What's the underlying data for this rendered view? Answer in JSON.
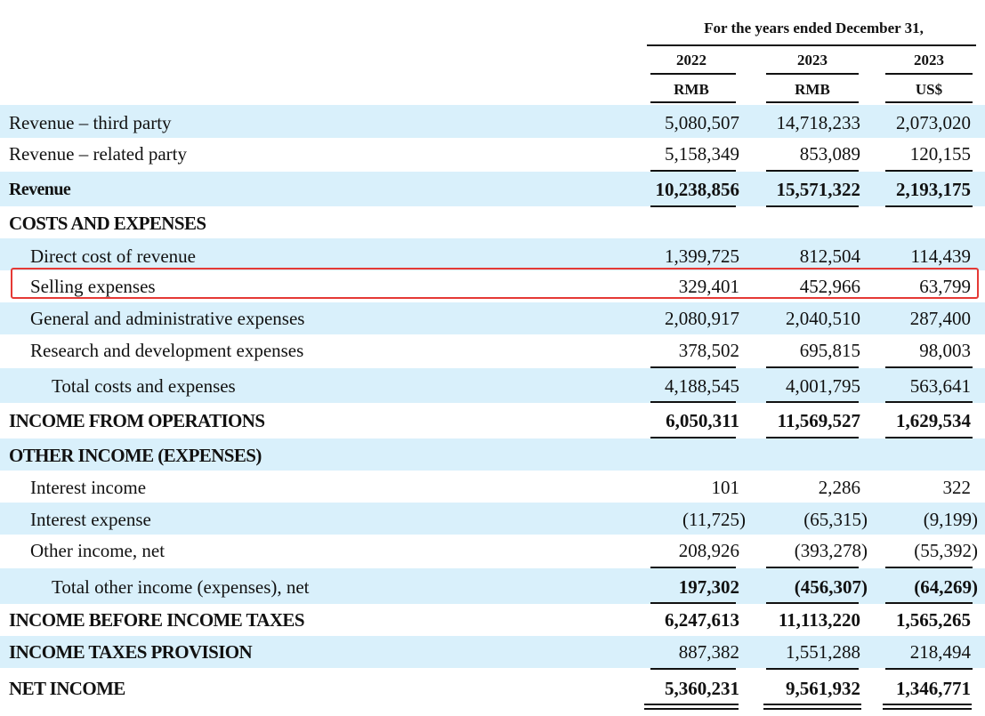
{
  "header": {
    "title": "For the years ended December 31,",
    "columns": [
      {
        "year": "2022",
        "currency": "RMB"
      },
      {
        "year": "2023",
        "currency": "RMB"
      },
      {
        "year": "2023",
        "currency": "US$"
      }
    ]
  },
  "rows": [
    {
      "label": "Revenue – third party",
      "values": [
        "5,080,507",
        "14,718,233",
        "2,073,020"
      ]
    },
    {
      "label": "Revenue – related party",
      "values": [
        "5,158,349",
        "853,089",
        "120,155"
      ]
    },
    {
      "label": "Revenue",
      "values": [
        "10,238,856",
        "15,571,322",
        "2,193,175"
      ]
    },
    {
      "label": "COSTS AND EXPENSES",
      "values": [
        "",
        "",
        ""
      ]
    },
    {
      "label": "Direct cost of revenue",
      "values": [
        "1,399,725",
        "812,504",
        "114,439"
      ]
    },
    {
      "label": "Selling expenses",
      "values": [
        "329,401",
        "452,966",
        "63,799"
      ]
    },
    {
      "label": "General and administrative expenses",
      "values": [
        "2,080,917",
        "2,040,510",
        "287,400"
      ]
    },
    {
      "label": "Research and development expenses",
      "values": [
        "378,502",
        "695,815",
        "98,003"
      ]
    },
    {
      "label": "Total costs and expenses",
      "values": [
        "4,188,545",
        "4,001,795",
        "563,641"
      ]
    },
    {
      "label": "INCOME FROM OPERATIONS",
      "values": [
        "6,050,311",
        "11,569,527",
        "1,629,534"
      ]
    },
    {
      "label": "OTHER INCOME (EXPENSES)",
      "values": [
        "",
        "",
        ""
      ]
    },
    {
      "label": "Interest income",
      "values": [
        "101",
        "2,286",
        "322"
      ]
    },
    {
      "label": "Interest expense",
      "values": [
        "(11,725)",
        "(65,315)",
        "(9,199)"
      ]
    },
    {
      "label": "Other income, net",
      "values": [
        "208,926",
        "(393,278)",
        "(55,392)"
      ]
    },
    {
      "label": "Total other income (expenses), net",
      "values": [
        "197,302",
        "(456,307)",
        "(64,269)"
      ]
    },
    {
      "label": "INCOME BEFORE INCOME TAXES",
      "values": [
        "6,247,613",
        "11,113,220",
        "1,565,265"
      ]
    },
    {
      "label": "INCOME TAXES PROVISION",
      "values": [
        "887,382",
        "1,551,288",
        "218,494"
      ]
    },
    {
      "label": "NET INCOME",
      "values": [
        "5,360,231",
        "9,561,932",
        "1,346,771"
      ]
    }
  ],
  "highlight": {
    "row_label": "Selling expenses",
    "color": "#e53935"
  },
  "colors": {
    "row_shading": "#d9f0fb",
    "text": "#111111"
  }
}
